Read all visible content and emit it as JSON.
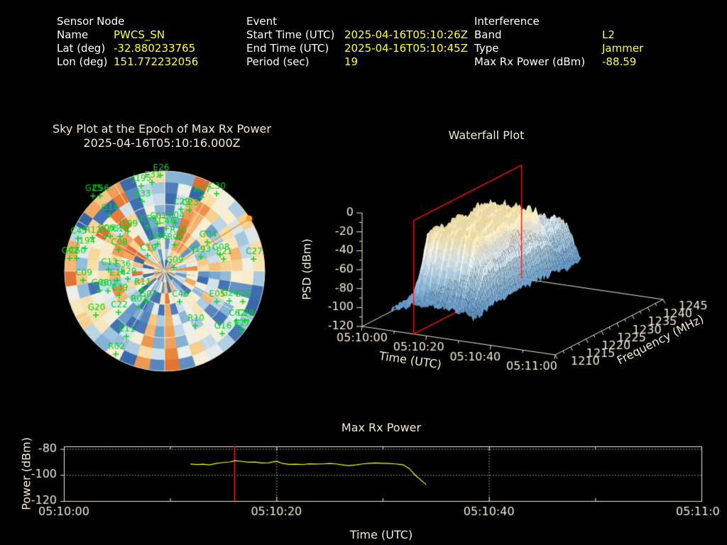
{
  "header": {
    "sensor": {
      "title": "Sensor Node",
      "rows": [
        {
          "label": "Name",
          "value": "PWCS_SN"
        },
        {
          "label": "Lat (deg)",
          "value": "-32.880233765"
        },
        {
          "label": "Lon (deg)",
          "value": "151.772232056"
        }
      ]
    },
    "event": {
      "title": "Event",
      "rows": [
        {
          "label": "Start Time (UTC)",
          "value": "2025-04-16T05:10:26Z"
        },
        {
          "label": "End Time (UTC)",
          "value": "2025-04-16T05:10:45Z"
        },
        {
          "label": "Period (sec)",
          "value": "19"
        }
      ]
    },
    "interference": {
      "title": "Interference",
      "rows": [
        {
          "label": "Band",
          "value": "L2"
        },
        {
          "label": "Type",
          "value": "Jammer"
        },
        {
          "label": "Max Rx Power (dBm)",
          "value": "-88.59"
        }
      ]
    }
  },
  "colors": {
    "background": "#000000",
    "axis": "#f1ecd0",
    "label_text": "#ffffff",
    "value_text": "#ffff33",
    "satellite_green": "#00d422",
    "series_yellow": "#ffff00",
    "epoch_red": "#ff1010",
    "bearing_orange": "#ffa02c"
  },
  "chart_data": [
    {
      "type": "scatter",
      "variant": "polar-sky-plot",
      "title": "Sky Plot at the Epoch of Max Rx Power",
      "subtitle": "2025-04-16T05:10:16.000Z",
      "coords": "screen-px",
      "center": {
        "x": 232,
        "y": 382,
        "radius": 141
      },
      "elevation_rings_deg": [
        0,
        30,
        60
      ],
      "azimuth_spokes_deg": 30,
      "bearing_line": {
        "x2": 351,
        "y2": 308
      },
      "satellites": [
        {
          "id": "E26",
          "x": 226,
          "y": 247
        },
        {
          "id": "E31",
          "x": 214,
          "y": 257
        },
        {
          "id": "J195",
          "x": 199,
          "y": 262
        },
        {
          "id": "G25",
          "x": 131,
          "y": 276
        },
        {
          "id": "C56",
          "x": 141,
          "y": 276
        },
        {
          "id": "E33",
          "x": 200,
          "y": 284
        },
        {
          "id": "G14",
          "x": 154,
          "y": 303
        },
        {
          "id": "R07",
          "x": 284,
          "y": 278
        },
        {
          "id": "C30",
          "x": 305,
          "y": 273
        },
        {
          "id": "C29",
          "x": 255,
          "y": 295
        },
        {
          "id": "C23",
          "x": 267,
          "y": 296
        },
        {
          "id": "C59",
          "x": 208,
          "y": 319
        },
        {
          "id": "C01",
          "x": 222,
          "y": 315
        },
        {
          "id": "C04",
          "x": 247,
          "y": 314
        },
        {
          "id": "C48",
          "x": 234,
          "y": 322
        },
        {
          "id": "J199",
          "x": 180,
          "y": 326
        },
        {
          "id": "C05",
          "x": 155,
          "y": 333
        },
        {
          "id": "C16",
          "x": 169,
          "y": 333
        },
        {
          "id": "C45",
          "x": 110,
          "y": 336
        },
        {
          "id": "R12",
          "x": 130,
          "y": 335
        },
        {
          "id": "C06",
          "x": 149,
          "y": 332
        },
        {
          "id": "J194",
          "x": 120,
          "y": 350
        },
        {
          "id": "C08",
          "x": 167,
          "y": 352
        },
        {
          "id": "J196",
          "x": 222,
          "y": 344
        },
        {
          "id": "R05",
          "x": 246,
          "y": 345
        },
        {
          "id": "R26",
          "x": 250,
          "y": 335
        },
        {
          "id": "G04",
          "x": 292,
          "y": 341
        },
        {
          "id": "C19",
          "x": 208,
          "y": 360
        },
        {
          "id": "J193",
          "x": 283,
          "y": 362
        },
        {
          "id": "G08",
          "x": 310,
          "y": 359
        },
        {
          "id": "E21",
          "x": 315,
          "y": 365
        },
        {
          "id": "C27",
          "x": 357,
          "y": 365
        },
        {
          "id": "G02",
          "x": 98,
          "y": 364
        },
        {
          "id": "C60",
          "x": 108,
          "y": 364
        },
        {
          "id": "G09",
          "x": 245,
          "y": 377
        },
        {
          "id": "C13",
          "x": 153,
          "y": 380
        },
        {
          "id": "E36",
          "x": 172,
          "y": 383
        },
        {
          "id": "C09",
          "x": 117,
          "y": 395
        },
        {
          "id": "E14",
          "x": 165,
          "y": 395
        },
        {
          "id": "E29",
          "x": 180,
          "y": 393
        },
        {
          "id": "G06",
          "x": 140,
          "y": 409
        },
        {
          "id": "G01",
          "x": 152,
          "y": 410
        },
        {
          "id": "E39",
          "x": 168,
          "y": 416
        },
        {
          "id": "R11",
          "x": 200,
          "y": 408
        },
        {
          "id": "G07",
          "x": 208,
          "y": 425
        },
        {
          "id": "C46",
          "x": 253,
          "y": 425
        },
        {
          "id": "E05",
          "x": 305,
          "y": 425
        },
        {
          "id": "G24",
          "x": 323,
          "y": 424
        },
        {
          "id": "E20",
          "x": 342,
          "y": 425
        },
        {
          "id": "G20",
          "x": 135,
          "y": 444
        },
        {
          "id": "C22",
          "x": 167,
          "y": 440
        },
        {
          "id": "R01",
          "x": 195,
          "y": 432
        },
        {
          "id": "C62",
          "x": 333,
          "y": 452
        },
        {
          "id": "C28",
          "x": 345,
          "y": 452
        },
        {
          "id": "G16",
          "x": 313,
          "y": 470
        },
        {
          "id": "E27",
          "x": 340,
          "y": 466
        },
        {
          "id": "R10",
          "x": 275,
          "y": 459
        },
        {
          "id": "E11",
          "x": 178,
          "y": 474
        },
        {
          "id": "R02",
          "x": 163,
          "y": 499
        }
      ]
    },
    {
      "type": "heatmap",
      "variant": "3d-surface-waterfall",
      "title": "Waterfall Plot",
      "xlabel": "Time (UTC)",
      "ylabel": "Frequency (MHz)",
      "zlabel": "PSD (dBm)",
      "x_ticks": [
        "05:10:00",
        "05:10:20",
        "05:10:40",
        "05:11:00"
      ],
      "y_ticks": [
        1210,
        1215,
        1220,
        1225,
        1230,
        1235,
        1240,
        1245
      ],
      "z_ticks": [
        0,
        -20,
        -40,
        -60,
        -80,
        -100,
        -120
      ],
      "time_range_s": [
        0,
        60
      ],
      "freq_range_mhz": [
        1210,
        1245
      ],
      "z_range_dbm": [
        -120,
        0
      ],
      "signal": {
        "time_extent_s": [
          9,
          34.5
        ],
        "noise_floor_dbm": -95,
        "plateau_psd_dbm": -22,
        "plateau_freq_mhz": [
          1214,
          1237
        ],
        "highband_shelf_dbm": -55
      },
      "epoch_plane": {
        "time_s": 16,
        "color": "#ff1010"
      }
    },
    {
      "type": "line",
      "title": "Max Rx Power",
      "xlabel": "Time (UTC)",
      "ylabel": "Power (dBm)",
      "x_ticks": [
        "05:10:00",
        "05:10:20",
        "05:10:40",
        "05:11:00"
      ],
      "x_tick_times_s": [
        0,
        20,
        40,
        60
      ],
      "y_ticks": [
        -80,
        -100,
        -120
      ],
      "ylim": [
        -120,
        -78
      ],
      "xlim_s": [
        0,
        60
      ],
      "epoch_line_s": 16.05,
      "grid": "dotted at y=-80,-100 and x=20s,40s",
      "series": [
        {
          "name": "Max Rx Power",
          "color": "#ffff00",
          "points_t_dbm": [
            [
              11.9,
              -91.6
            ],
            [
              12.5,
              -92.0
            ],
            [
              13.1,
              -91.7
            ],
            [
              13.7,
              -92.2
            ],
            [
              14.3,
              -91.2
            ],
            [
              15.0,
              -90.4
            ],
            [
              15.6,
              -90.0
            ],
            [
              16.1,
              -89.0
            ],
            [
              16.8,
              -89.6
            ],
            [
              17.4,
              -90.2
            ],
            [
              18.0,
              -90.1
            ],
            [
              18.6,
              -90.8
            ],
            [
              19.3,
              -90.6
            ],
            [
              20.0,
              -89.4
            ],
            [
              20.6,
              -91.2
            ],
            [
              21.2,
              -91.8
            ],
            [
              21.8,
              -91.7
            ],
            [
              22.5,
              -91.9
            ],
            [
              23.1,
              -91.4
            ],
            [
              23.7,
              -91.6
            ],
            [
              24.3,
              -91.5
            ],
            [
              25.0,
              -91.2
            ],
            [
              25.6,
              -91.5
            ],
            [
              26.2,
              -92.2
            ],
            [
              26.8,
              -92.8
            ],
            [
              27.5,
              -92.3
            ],
            [
              28.1,
              -91.5
            ],
            [
              28.7,
              -91.0
            ],
            [
              29.3,
              -90.7
            ],
            [
              30.0,
              -91.0
            ],
            [
              30.6,
              -91.2
            ],
            [
              31.2,
              -91.5
            ],
            [
              31.9,
              -92.1
            ],
            [
              32.5,
              -95.0
            ],
            [
              33.1,
              -100.5
            ],
            [
              33.7,
              -104.5
            ],
            [
              34.1,
              -107.5
            ]
          ]
        }
      ]
    }
  ]
}
